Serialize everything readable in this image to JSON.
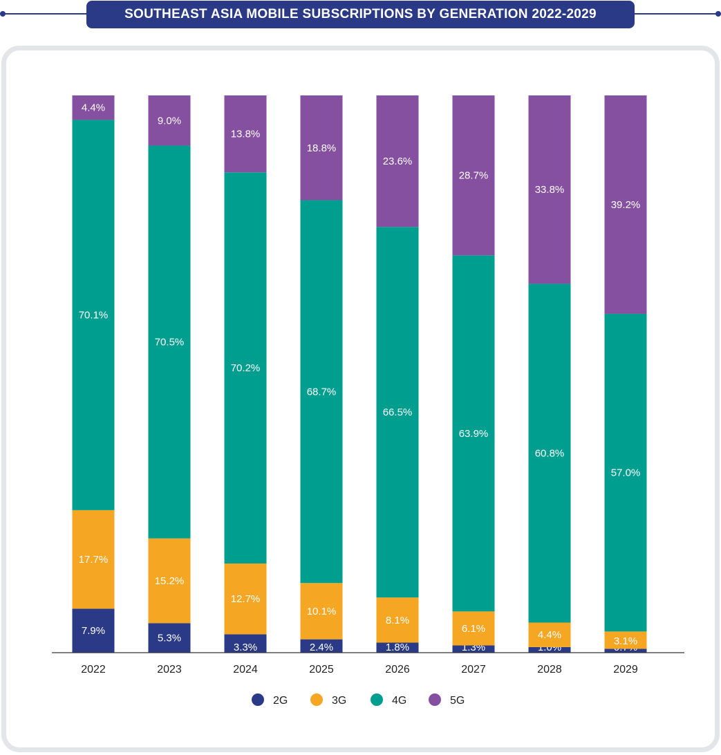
{
  "title": "SOUTHEAST ASIA MOBILE SUBSCRIPTIONS BY GENERATION 2022-2029",
  "colors": {
    "2G": "#2b3a86",
    "3G": "#f5a623",
    "4G": "#009e8f",
    "5G": "#8650a0",
    "title_bg": "#2b3a86"
  },
  "chart_data": {
    "type": "bar",
    "stacked": true,
    "categories": [
      "2022",
      "2023",
      "2024",
      "2025",
      "2026",
      "2027",
      "2028",
      "2029"
    ],
    "series": [
      {
        "name": "2G",
        "values": [
          7.9,
          5.3,
          3.3,
          2.4,
          1.8,
          1.3,
          1.0,
          0.7
        ],
        "labels": [
          "7.9%",
          "5.3%",
          "3.3%",
          "2.4%",
          "1.8%",
          "1.3%",
          "1.0%",
          "0.7%"
        ]
      },
      {
        "name": "3G",
        "values": [
          17.7,
          15.2,
          12.7,
          10.1,
          8.1,
          6.1,
          4.4,
          3.1
        ],
        "labels": [
          "17.7%",
          "15.2%",
          "12.7%",
          "10.1%",
          "8.1%",
          "6.1%",
          "4.4%",
          "3.1%"
        ]
      },
      {
        "name": "4G",
        "values": [
          70.1,
          70.5,
          70.2,
          68.7,
          66.5,
          63.9,
          60.8,
          57.0
        ],
        "labels": [
          "70.1%",
          "70.5%",
          "70.2%",
          "68.7%",
          "66.5%",
          "63.9%",
          "60.8%",
          "57.0%"
        ]
      },
      {
        "name": "5G",
        "values": [
          4.4,
          9.0,
          13.8,
          18.8,
          23.6,
          28.7,
          33.8,
          39.2
        ],
        "labels": [
          "4.4%",
          "9.0%",
          "13.8%",
          "18.8%",
          "23.6%",
          "28.7%",
          "33.8%",
          "39.2%"
        ]
      }
    ],
    "ylim": [
      0,
      100
    ],
    "grid": false,
    "legend_position": "bottom"
  }
}
